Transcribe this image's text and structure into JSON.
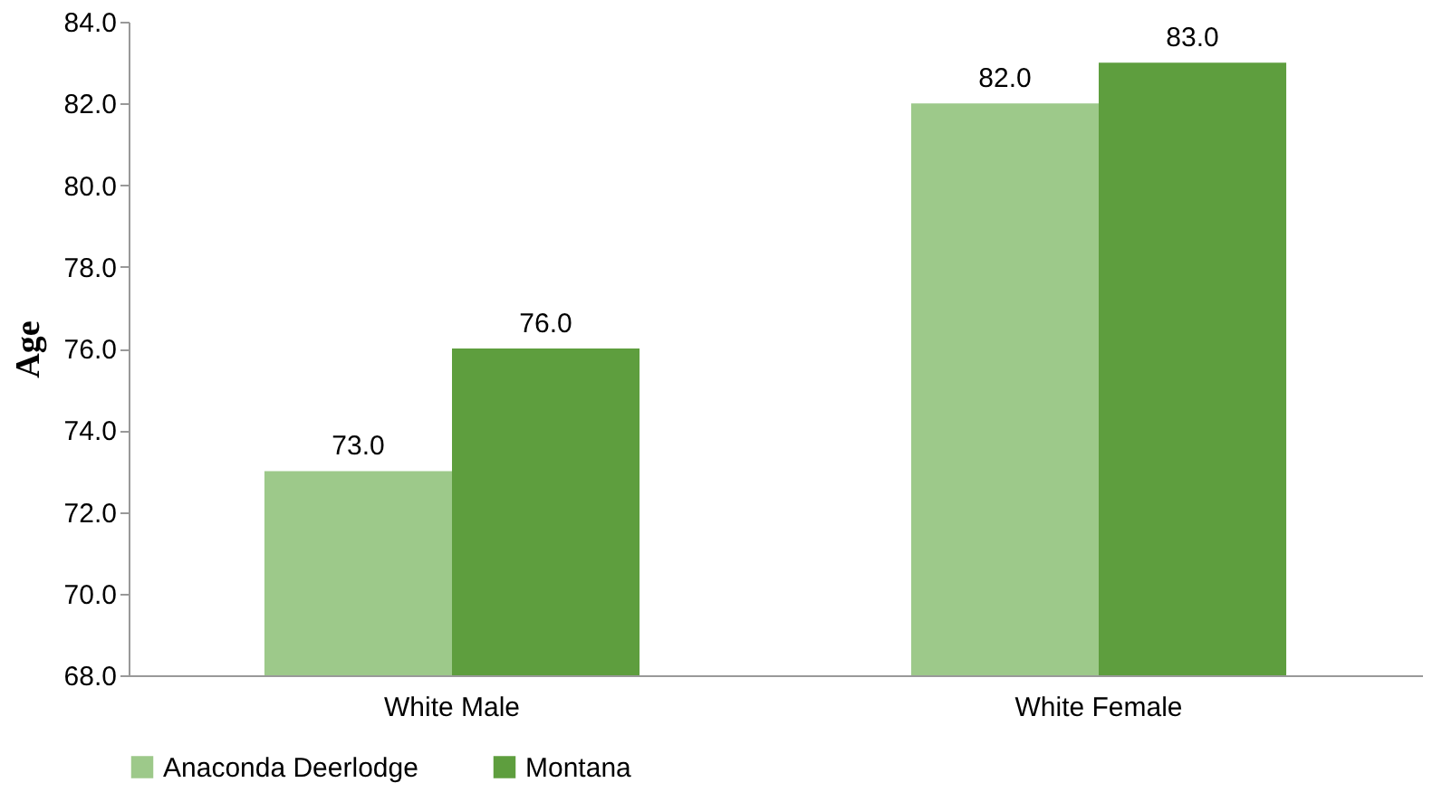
{
  "chart_data": {
    "type": "bar",
    "ylabel": "Age",
    "categories": [
      "White Male",
      "White Female"
    ],
    "series": [
      {
        "name": "Anaconda Deerlodge",
        "color": "#9dc98a",
        "values": [
          73,
          82
        ],
        "value_labels": [
          "73.0",
          "82.0"
        ]
      },
      {
        "name": "Montana",
        "color": "#5e9e3e",
        "values": [
          76,
          83
        ],
        "value_labels": [
          "76.0",
          "83.0"
        ]
      }
    ],
    "ylim": [
      68,
      84
    ],
    "yticks": [
      {
        "value": 68,
        "label": "68.0"
      },
      {
        "value": 70,
        "label": "70.0"
      },
      {
        "value": 72,
        "label": "72.0"
      },
      {
        "value": 74,
        "label": "74.0"
      },
      {
        "value": 76,
        "label": "76.0"
      },
      {
        "value": 78,
        "label": "78.0"
      },
      {
        "value": 80,
        "label": "80.0"
      },
      {
        "value": 82,
        "label": "82.0"
      },
      {
        "value": 84,
        "label": "84.0"
      }
    ],
    "grid": false,
    "legend": "bottom"
  }
}
